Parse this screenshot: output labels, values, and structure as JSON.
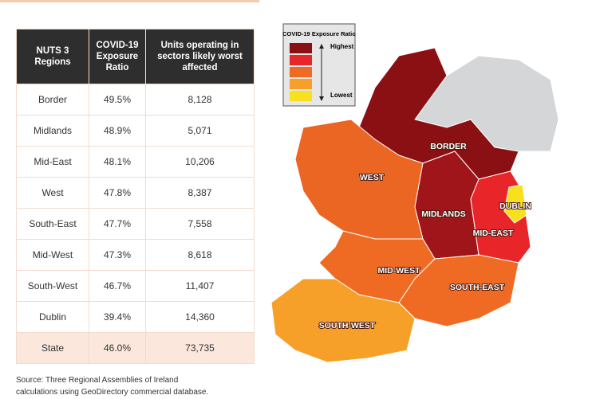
{
  "table": {
    "headers": [
      [
        "NUTS 3",
        "Regions"
      ],
      [
        "COVID-19",
        "Exposure",
        "Ratio"
      ],
      [
        "Units operating in",
        "sectors likely worst",
        "affected"
      ]
    ],
    "rows": [
      [
        "Border",
        "49.5%",
        "8,128"
      ],
      [
        "Midlands",
        "48.9%",
        "5,071"
      ],
      [
        "Mid-East",
        "48.1%",
        "10,206"
      ],
      [
        "West",
        "47.8%",
        "8,387"
      ],
      [
        "South-East",
        "47.7%",
        "7,558"
      ],
      [
        "Mid-West",
        "47.3%",
        "8,618"
      ],
      [
        "South-West",
        "46.7%",
        "11,407"
      ],
      [
        "Dublin",
        "39.4%",
        "14,360"
      ],
      [
        "State",
        "46.0%",
        "73,735"
      ]
    ]
  },
  "source": [
    "Source: Three Regional Assemblies of Ireland",
    "calculations using GeoDirectory commercial database."
  ],
  "map": {
    "legend": {
      "title": "COVID-19 Exposure Ratio",
      "high": "Highest",
      "low": "Lowest"
    },
    "regions": [
      "BORDER",
      "WEST",
      "MIDLANDS",
      "DUBLIN",
      "MID-EAST",
      "MID-WEST",
      "SOUTH-EAST",
      "SOUTH-WEST"
    ]
  }
}
